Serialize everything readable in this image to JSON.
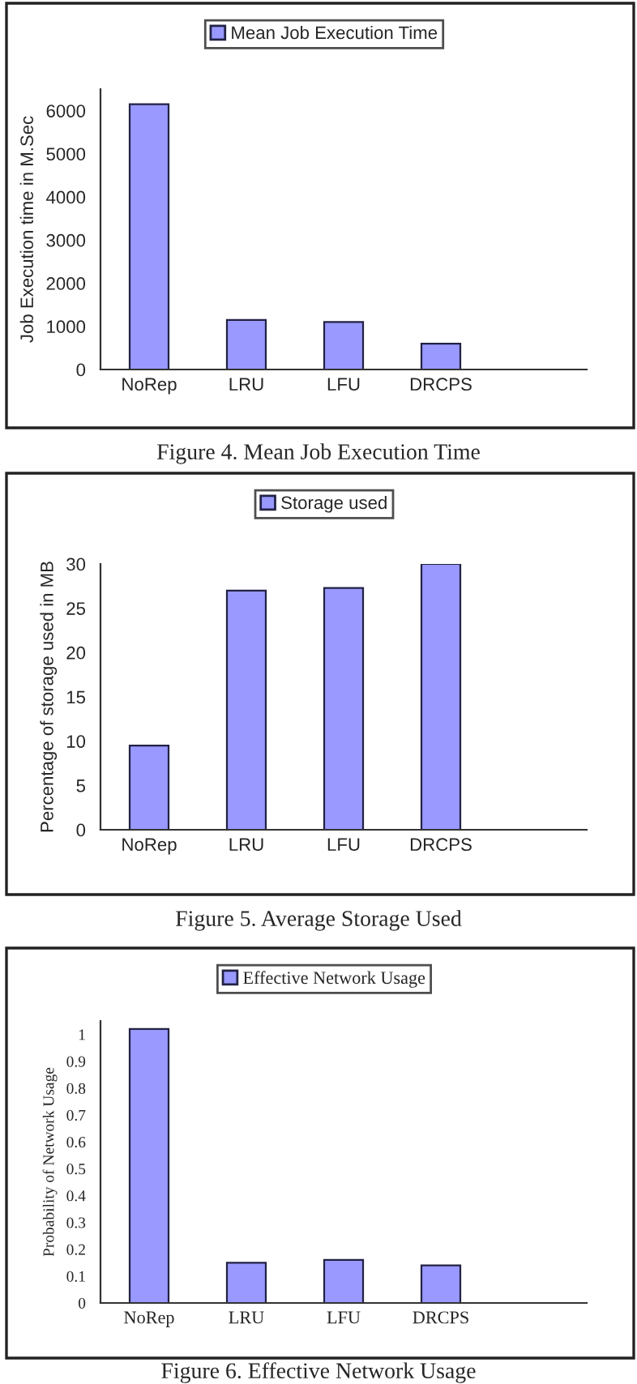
{
  "chart_data": [
    {
      "type": "bar",
      "categories": [
        "NoRep",
        "LRU",
        "LFU",
        "DRCPS"
      ],
      "series": [
        {
          "name": "Mean Job Execution Time",
          "color": "#9999ff",
          "values": [
            6150,
            1150,
            1100,
            600
          ]
        }
      ],
      "ylabel": "Job Execution time in M.Sec",
      "ylim": [
        0,
        6500
      ],
      "yticks": [
        0,
        1000,
        2000,
        3000,
        4000,
        5000,
        6000
      ],
      "legend": "top",
      "grid": false,
      "annotations": [
        "Figure 4. Mean Job Execution Time"
      ]
    },
    {
      "type": "bar",
      "categories": [
        "NoRep",
        "LRU",
        "LFU",
        "DRCPS"
      ],
      "series": [
        {
          "name": "Storage used",
          "color": "#9999ff",
          "values": [
            9.5,
            27,
            27.3,
            30
          ]
        }
      ],
      "ylabel": "Percentage of storage used in MB",
      "ylim": [
        0,
        30
      ],
      "yticks": [
        0,
        5,
        10,
        15,
        20,
        25,
        30
      ],
      "legend": "top",
      "grid": false,
      "annotations": [
        "Figure 5. Average Storage Used"
      ]
    },
    {
      "type": "bar",
      "categories": [
        "NoRep",
        "LRU",
        "LFU",
        "DRCPS"
      ],
      "series": [
        {
          "name": "Effective Network Usage",
          "color": "#9999ff",
          "values": [
            1.02,
            0.15,
            0.16,
            0.14
          ]
        }
      ],
      "ylabel": "Probability of Network Usage",
      "ylim": [
        0,
        1.05
      ],
      "yticks": [
        0,
        0.1,
        0.2,
        0.3,
        0.4,
        0.5,
        0.6,
        0.7,
        0.8,
        0.9,
        1
      ],
      "legend": "top",
      "grid": false,
      "annotations": [
        "Figure 6. Effective Network Usage"
      ]
    }
  ]
}
